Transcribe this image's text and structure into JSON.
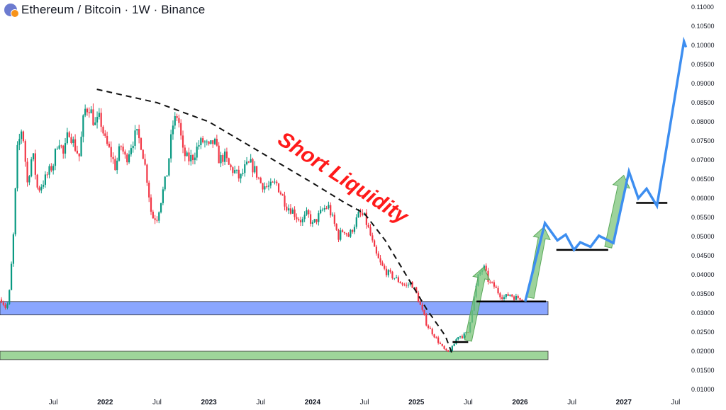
{
  "header": {
    "title": "Ethereum / Bitcoin · 1W · Binance",
    "icon": "eth-btc-pair-icon"
  },
  "chart_data": {
    "type": "candlestick",
    "title": "Ethereum / Bitcoin · 1W · Binance",
    "ylim": [
      0.0095,
      0.111
    ],
    "y_ticks": [
      "0.11000",
      "0.10500",
      "0.10000",
      "0.09500",
      "0.09000",
      "0.08500",
      "0.08000",
      "0.07500",
      "0.07000",
      "0.06500",
      "0.06000",
      "0.05500",
      "0.05000",
      "0.04500",
      "0.04000",
      "0.03500",
      "0.03000",
      "0.02500",
      "0.02000",
      "0.01500",
      "0.01000"
    ],
    "x_ticks": [
      {
        "label": "Jul",
        "t": 2021.5,
        "major": false
      },
      {
        "label": "2022",
        "t": 2022.0,
        "major": true
      },
      {
        "label": "Jul",
        "t": 2022.5,
        "major": false
      },
      {
        "label": "2023",
        "t": 2023.0,
        "major": true
      },
      {
        "label": "Jul",
        "t": 2023.5,
        "major": false
      },
      {
        "label": "2024",
        "t": 2024.0,
        "major": true
      },
      {
        "label": "Jul",
        "t": 2024.5,
        "major": false
      },
      {
        "label": "2025",
        "t": 2025.0,
        "major": true
      },
      {
        "label": "Jul",
        "t": 2025.5,
        "major": false
      },
      {
        "label": "2026",
        "t": 2026.0,
        "major": true
      },
      {
        "label": "Jul",
        "t": 2026.5,
        "major": false
      },
      {
        "label": "2027",
        "t": 2027.0,
        "major": true
      },
      {
        "label": "Jul",
        "t": 2027.5,
        "major": false
      }
    ],
    "price_path": [
      [
        2021.0,
        0.0335
      ],
      [
        2021.05,
        0.031
      ],
      [
        2021.08,
        0.036
      ],
      [
        2021.12,
        0.052
      ],
      [
        2021.15,
        0.072
      ],
      [
        2021.2,
        0.079
      ],
      [
        2021.25,
        0.064
      ],
      [
        2021.3,
        0.072
      ],
      [
        2021.35,
        0.062
      ],
      [
        2021.42,
        0.065
      ],
      [
        2021.5,
        0.069
      ],
      [
        2021.55,
        0.076
      ],
      [
        2021.6,
        0.071
      ],
      [
        2021.65,
        0.078
      ],
      [
        2021.7,
        0.074
      ],
      [
        2021.75,
        0.071
      ],
      [
        2021.8,
        0.083
      ],
      [
        2021.85,
        0.084
      ],
      [
        2021.9,
        0.079
      ],
      [
        2021.95,
        0.081
      ],
      [
        2022.0,
        0.075
      ],
      [
        2022.05,
        0.072
      ],
      [
        2022.1,
        0.068
      ],
      [
        2022.15,
        0.074
      ],
      [
        2022.2,
        0.07
      ],
      [
        2022.25,
        0.074
      ],
      [
        2022.3,
        0.077
      ],
      [
        2022.35,
        0.074
      ],
      [
        2022.4,
        0.066
      ],
      [
        2022.45,
        0.055
      ],
      [
        2022.5,
        0.055
      ],
      [
        2022.55,
        0.061
      ],
      [
        2022.6,
        0.067
      ],
      [
        2022.65,
        0.079
      ],
      [
        2022.7,
        0.082
      ],
      [
        2022.75,
        0.072
      ],
      [
        2022.8,
        0.07
      ],
      [
        2022.85,
        0.071
      ],
      [
        2022.9,
        0.074
      ],
      [
        2022.95,
        0.075
      ],
      [
        2023.0,
        0.073
      ],
      [
        2023.05,
        0.075
      ],
      [
        2023.1,
        0.07
      ],
      [
        2023.15,
        0.071
      ],
      [
        2023.2,
        0.068
      ],
      [
        2023.25,
        0.067
      ],
      [
        2023.3,
        0.065
      ],
      [
        2023.35,
        0.068
      ],
      [
        2023.4,
        0.069
      ],
      [
        2023.45,
        0.067
      ],
      [
        2023.5,
        0.064
      ],
      [
        2023.55,
        0.063
      ],
      [
        2023.6,
        0.063
      ],
      [
        2023.65,
        0.064
      ],
      [
        2023.7,
        0.061
      ],
      [
        2023.75,
        0.058
      ],
      [
        2023.8,
        0.057
      ],
      [
        2023.85,
        0.055
      ],
      [
        2023.9,
        0.054
      ],
      [
        2023.95,
        0.056
      ],
      [
        2024.0,
        0.053
      ],
      [
        2024.05,
        0.055
      ],
      [
        2024.1,
        0.057
      ],
      [
        2024.15,
        0.058
      ],
      [
        2024.2,
        0.054
      ],
      [
        2024.25,
        0.05
      ],
      [
        2024.3,
        0.052
      ],
      [
        2024.35,
        0.05
      ],
      [
        2024.4,
        0.053
      ],
      [
        2024.45,
        0.056
      ],
      [
        2024.5,
        0.055
      ],
      [
        2024.55,
        0.051
      ],
      [
        2024.6,
        0.046
      ],
      [
        2024.65,
        0.043
      ],
      [
        2024.7,
        0.041
      ],
      [
        2024.75,
        0.04
      ],
      [
        2024.8,
        0.039
      ],
      [
        2024.85,
        0.038
      ],
      [
        2024.9,
        0.037
      ],
      [
        2024.95,
        0.038
      ],
      [
        2025.0,
        0.035
      ],
      [
        2025.05,
        0.031
      ],
      [
        2025.1,
        0.027
      ],
      [
        2025.15,
        0.025
      ],
      [
        2025.2,
        0.023
      ],
      [
        2025.25,
        0.021
      ],
      [
        2025.3,
        0.0195
      ],
      [
        2025.35,
        0.021
      ],
      [
        2025.4,
        0.024
      ],
      [
        2025.45,
        0.024
      ],
      [
        2025.5,
        0.025
      ],
      [
        2025.55,
        0.033
      ],
      [
        2025.6,
        0.04
      ],
      [
        2025.65,
        0.042
      ],
      [
        2025.7,
        0.038
      ],
      [
        2025.75,
        0.037
      ],
      [
        2025.8,
        0.035
      ],
      [
        2025.85,
        0.034
      ],
      [
        2025.9,
        0.035
      ],
      [
        2025.95,
        0.034
      ],
      [
        2026.03,
        0.034
      ]
    ],
    "zones": [
      {
        "name": "blue-zone",
        "from": 0.0295,
        "to": 0.033,
        "color": "#8aa6ff"
      },
      {
        "name": "green-zone",
        "from": 0.0178,
        "to": 0.02,
        "color": "#9ed59a"
      }
    ],
    "levels": [
      {
        "price": 0.0224,
        "t0": 2025.35,
        "t1": 2025.5
      },
      {
        "price": 0.033,
        "t0": 2025.58,
        "t1": 2026.25
      },
      {
        "price": 0.0465,
        "t0": 2026.35,
        "t1": 2026.85
      },
      {
        "price": 0.0588,
        "t0": 2027.12,
        "t1": 2027.42
      }
    ],
    "projection": [
      [
        2026.05,
        0.033
      ],
      [
        2026.24,
        0.0535
      ],
      [
        2026.36,
        0.049
      ],
      [
        2026.44,
        0.0505
      ],
      [
        2026.52,
        0.0465
      ],
      [
        2026.58,
        0.0485
      ],
      [
        2026.68,
        0.0473
      ],
      [
        2026.76,
        0.0502
      ],
      [
        2026.9,
        0.0483
      ],
      [
        2027.05,
        0.067
      ],
      [
        2027.14,
        0.06
      ],
      [
        2027.22,
        0.0625
      ],
      [
        2027.32,
        0.058
      ],
      [
        2027.58,
        0.101
      ],
      [
        2027.6,
        0.0995
      ]
    ],
    "green_arrows": [
      {
        "from": [
          2025.5,
          0.0228
        ],
        "to": [
          2025.65,
          0.042
        ]
      },
      {
        "from": [
          2026.1,
          0.034
        ],
        "to": [
          2026.23,
          0.0525
        ]
      },
      {
        "from": [
          2026.85,
          0.0472
        ],
        "to": [
          2027.0,
          0.066
        ]
      }
    ],
    "dashed_curve": [
      [
        2021.92,
        0.0885
      ],
      [
        2022.5,
        0.085
      ],
      [
        2023.0,
        0.08
      ],
      [
        2023.5,
        0.072
      ],
      [
        2024.0,
        0.064
      ],
      [
        2024.3,
        0.059
      ],
      [
        2024.5,
        0.056
      ],
      [
        2024.7,
        0.049
      ],
      [
        2024.9,
        0.04
      ],
      [
        2025.1,
        0.031
      ],
      [
        2025.28,
        0.024
      ],
      [
        2025.35,
        0.019
      ]
    ],
    "annotation": {
      "text": "Short Liquidity",
      "t": 2023.65,
      "price": 0.0745,
      "rotation": 33
    }
  }
}
